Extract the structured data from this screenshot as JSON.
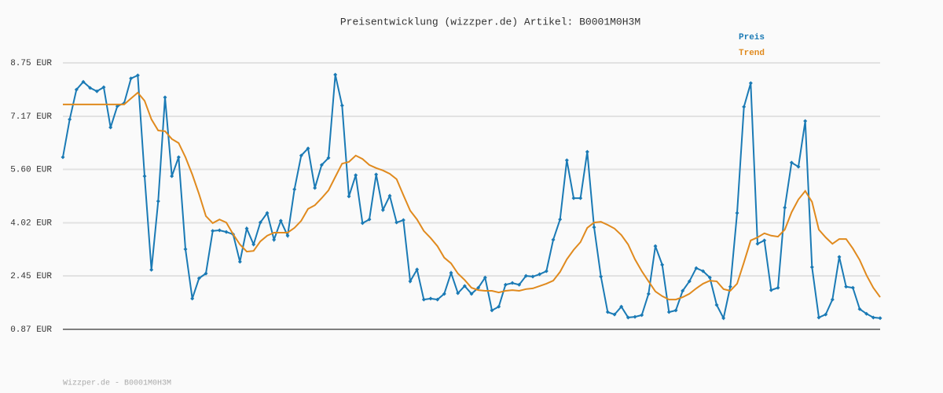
{
  "chart_data": {
    "type": "line",
    "title": "Preisentwicklung (wizzper.de) Artikel: B0001M0H3M",
    "footer": "Wizzper.de - B0001M0H3M",
    "ylim": [
      0.87,
      8.75
    ],
    "yticks": [
      {
        "value": 0.87,
        "label": "0.87 EUR"
      },
      {
        "value": 2.45,
        "label": "2.45 EUR"
      },
      {
        "value": 4.02,
        "label": "4.02 EUR"
      },
      {
        "value": 5.6,
        "label": "5.60 EUR"
      },
      {
        "value": 7.17,
        "label": "7.17 EUR"
      },
      {
        "value": 8.75,
        "label": "8.75 EUR"
      }
    ],
    "grid": true,
    "legend": "top-right",
    "series": [
      {
        "name": "Preis",
        "color": "#1a7ab5",
        "markers": true,
        "values": [
          5.96,
          7.08,
          7.96,
          8.19,
          8.01,
          7.91,
          8.03,
          6.84,
          7.47,
          7.56,
          8.29,
          8.38,
          5.4,
          2.63,
          4.66,
          7.73,
          5.4,
          5.96,
          3.24,
          1.78,
          2.38,
          2.52,
          3.78,
          3.8,
          3.75,
          3.68,
          2.87,
          3.85,
          3.38,
          4.03,
          4.31,
          3.52,
          4.08,
          3.64,
          5.01,
          6.01,
          6.22,
          5.05,
          5.73,
          5.94,
          8.4,
          7.49,
          4.8,
          5.43,
          4.01,
          4.12,
          5.45,
          4.4,
          4.82,
          4.03,
          4.1,
          2.29,
          2.64,
          1.75,
          1.78,
          1.75,
          1.92,
          2.54,
          1.94,
          2.15,
          1.92,
          2.1,
          2.4,
          1.43,
          1.54,
          2.19,
          2.24,
          2.19,
          2.45,
          2.43,
          2.5,
          2.59,
          3.52,
          4.12,
          5.87,
          4.75,
          4.75,
          6.12,
          3.89,
          2.43,
          1.38,
          1.31,
          1.54,
          1.22,
          1.24,
          1.29,
          1.92,
          3.33,
          2.78,
          1.38,
          1.43,
          2.01,
          2.29,
          2.68,
          2.59,
          2.4,
          1.59,
          1.2,
          2.13,
          4.31,
          7.45,
          8.15,
          3.4,
          3.5,
          2.03,
          2.1,
          4.47,
          5.8,
          5.68,
          7.03,
          2.71,
          1.22,
          1.31,
          1.75,
          3.01,
          2.13,
          2.1,
          1.47,
          1.33,
          1.22,
          1.2
        ]
      },
      {
        "name": "Trend",
        "color": "#e08a1e",
        "markers": false,
        "values": [
          7.52,
          7.52,
          7.52,
          7.52,
          7.52,
          7.52,
          7.52,
          7.52,
          7.52,
          7.52,
          7.7,
          7.87,
          7.63,
          7.08,
          6.75,
          6.73,
          6.5,
          6.38,
          5.96,
          5.45,
          4.87,
          4.22,
          4.01,
          4.12,
          4.03,
          3.68,
          3.38,
          3.17,
          3.19,
          3.47,
          3.64,
          3.73,
          3.73,
          3.73,
          3.87,
          4.08,
          4.43,
          4.54,
          4.75,
          4.98,
          5.38,
          5.77,
          5.82,
          6.01,
          5.91,
          5.73,
          5.64,
          5.57,
          5.47,
          5.31,
          4.84,
          4.38,
          4.12,
          3.78,
          3.57,
          3.33,
          2.99,
          2.82,
          2.52,
          2.33,
          2.1,
          2.03,
          2.01,
          2.01,
          1.96,
          2.01,
          2.03,
          2.01,
          2.06,
          2.08,
          2.15,
          2.22,
          2.31,
          2.57,
          2.94,
          3.22,
          3.45,
          3.87,
          4.03,
          4.05,
          3.96,
          3.85,
          3.66,
          3.38,
          2.94,
          2.59,
          2.29,
          1.99,
          1.85,
          1.75,
          1.75,
          1.82,
          1.92,
          2.08,
          2.22,
          2.31,
          2.29,
          2.06,
          2.01,
          2.22,
          2.85,
          3.5,
          3.59,
          3.71,
          3.64,
          3.61,
          3.82,
          4.33,
          4.71,
          4.96,
          4.64,
          3.82,
          3.59,
          3.4,
          3.54,
          3.54,
          3.26,
          2.92,
          2.47,
          2.1,
          1.82
        ]
      }
    ]
  }
}
